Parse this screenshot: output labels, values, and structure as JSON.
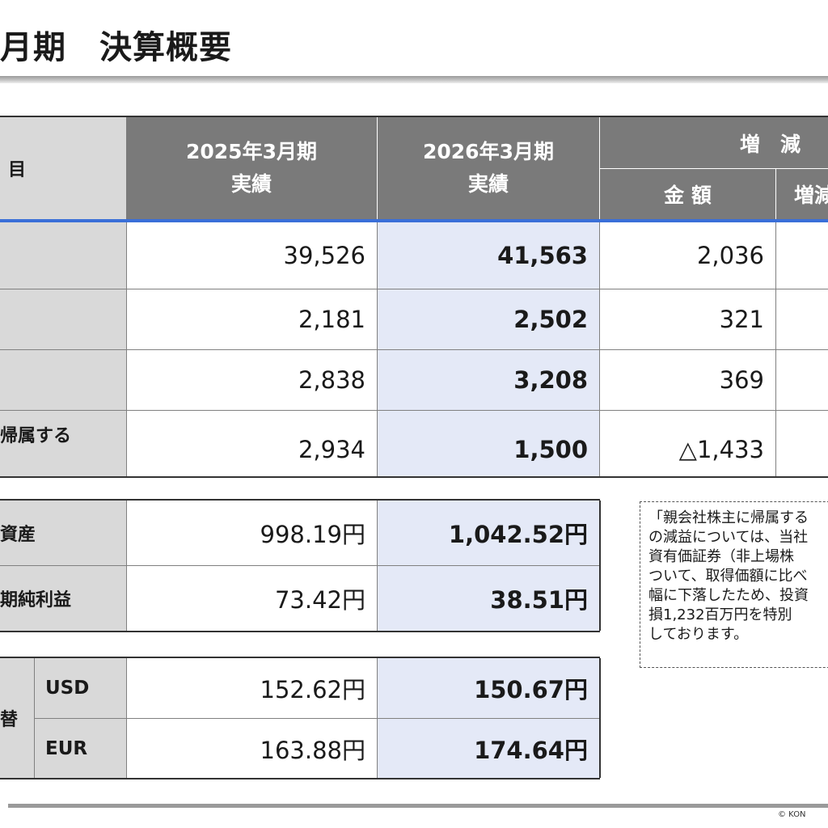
{
  "title": "月期　決算概要",
  "header": {
    "item_col": "目",
    "col_fy2025_year": "2025年3月期",
    "col_fy2025_type": "実績",
    "col_fy2026_year": "2026年3月期",
    "col_fy2026_type": "実績",
    "change_group": "増　減",
    "change_amount": "金 額",
    "change_rate": "増減"
  },
  "pl_rows": [
    {
      "label": "",
      "fy2025": "39,526",
      "fy2026": "41,563",
      "change": "2,036"
    },
    {
      "label": "",
      "fy2025": "2,181",
      "fy2026": "2,502",
      "change": "321"
    },
    {
      "label": "",
      "fy2025": "2,838",
      "fy2026": "3,208",
      "change": "369"
    },
    {
      "label": "帰属する",
      "fy2025": "2,934",
      "fy2026": "1,500",
      "change": "△1,433"
    }
  ],
  "per_share_rows": [
    {
      "label": "資産",
      "fy2025": "998.19円",
      "fy2026": "1,042.52円"
    },
    {
      "label": "期純利益",
      "fy2025": "73.42円",
      "fy2026": "38.51円"
    }
  ],
  "fx": {
    "group_label": "替",
    "rows": [
      {
        "currency": "USD",
        "fy2025": "152.62円",
        "fy2026": "150.67円"
      },
      {
        "currency": "EUR",
        "fy2025": "163.88円",
        "fy2026": "174.64円"
      }
    ]
  },
  "note_lines": [
    "「親会社株主に帰属する",
    "の減益については、当社",
    "資有価証券（非上場株",
    "ついて、取得価額に比べ",
    "幅に下落したため、投資",
    "損1,232百万円を特別",
    "しております。"
  ],
  "copyright": "© KON"
}
